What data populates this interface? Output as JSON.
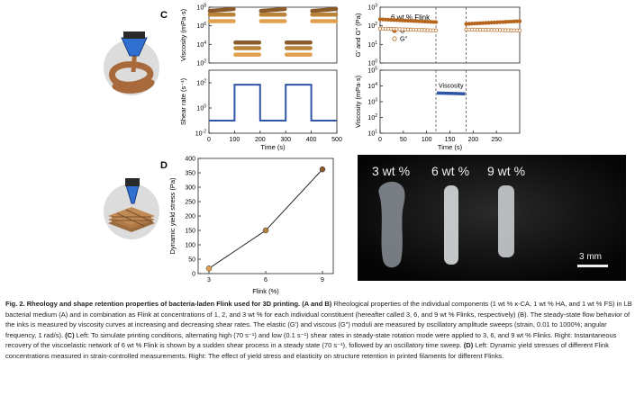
{
  "panel_c_label": "C",
  "panel_d_label": "D",
  "photo": {
    "labels": [
      "3 wt %",
      "6 wt %",
      "9 wt %"
    ],
    "scale_bar": "3 mm"
  },
  "caption": {
    "lead": "Fig. 2.",
    "title": "Rheology and shape retention properties of bacteria-laden Flink used for 3D printing.",
    "ab_bold": "(A and B)",
    "ab_text": "Rheological properties of the individual components (1 wt % κ-CA, 1 wt % HA, and 1 wt % FS) in LB bacterial medium (A) and in combination as Flink at concentrations of 1, 2, and 3 wt % for each individual constituent (hereafter called 3, 6, and 9 wt % Flinks, respectively) (B). The steady-state flow behavior of the inks is measured by viscosity curves at increasing and decreasing shear rates. The elastic (G′) and viscous (G″) moduli are measured by oscillatory amplitude sweeps (strain, 0.01 to 1000%; angular frequency, 1 rad/s).",
    "c_bold": "(C)",
    "c_text": "Left: To simulate printing conditions, alternating high (70 s⁻¹) and low (0.1 s⁻¹) shear rates in steady-state rotation mode were applied to 3, 6, and 9 wt % Flinks. Right: Instantaneous recovery of the viscoelastic network of 6 wt % Flink is shown by a sudden shear process in a steady state (70 s⁻¹), followed by an oscillatory time sweep.",
    "d_bold": "(D)",
    "d_text": "Left: Dynamic yield stresses of different Flink concentrations measured in strain-controlled measurements. Right: The effect of yield stress and elasticity on structure retention in printed filaments for different Flinks."
  },
  "chart_data": [
    {
      "id": "c-left-viscosity",
      "type": "line",
      "ylabel": "Viscosity (mPa·s)",
      "xlim": [
        0,
        500
      ],
      "yscale": "log",
      "ylim": [
        100,
        100000000
      ],
      "yticks_exp": [
        2,
        4,
        6,
        8
      ],
      "colors": [
        "#8a5a2b",
        "#b88338",
        "#e0a050"
      ],
      "segments": [
        {
          "x": [
            0,
            100
          ],
          "series": [
            {
              "values_log10": [
                7.6,
                7.8
              ]
            },
            {
              "values_log10": [
                7.2,
                7.2
              ]
            },
            {
              "values_log10": [
                6.5,
                6.5
              ]
            }
          ]
        },
        {
          "x": [
            100,
            200
          ],
          "series": [
            {
              "values_log10": [
                4.2,
                4.2
              ]
            },
            {
              "values_log10": [
                3.6,
                3.6
              ]
            },
            {
              "values_log10": [
                2.9,
                2.9
              ]
            }
          ]
        },
        {
          "x": [
            200,
            300
          ],
          "series": [
            {
              "values_log10": [
                7.6,
                7.8
              ]
            },
            {
              "values_log10": [
                7.2,
                7.2
              ]
            },
            {
              "values_log10": [
                6.5,
                6.5
              ]
            }
          ]
        },
        {
          "x": [
            300,
            400
          ],
          "series": [
            {
              "values_log10": [
                4.2,
                4.2
              ]
            },
            {
              "values_log10": [
                3.6,
                3.6
              ]
            },
            {
              "values_log10": [
                2.9,
                2.9
              ]
            }
          ]
        },
        {
          "x": [
            400,
            500
          ],
          "series": [
            {
              "values_log10": [
                7.6,
                7.8
              ]
            },
            {
              "values_log10": [
                7.2,
                7.2
              ]
            },
            {
              "values_log10": [
                6.5,
                6.5
              ]
            }
          ]
        }
      ]
    },
    {
      "id": "c-left-shear",
      "type": "line",
      "xlabel": "Time (s)",
      "ylabel": "Shear rate (s⁻¹)",
      "xlim": [
        0,
        500
      ],
      "xticks": [
        0,
        100,
        200,
        300,
        400,
        500
      ],
      "yscale": "log",
      "ylim": [
        0.01,
        1000
      ],
      "yticks_exp": [
        -2,
        0,
        2
      ],
      "color": "#2f56a6",
      "x": [
        0,
        100,
        100,
        200,
        200,
        300,
        300,
        400,
        400,
        500
      ],
      "values": [
        0.1,
        0.1,
        70,
        70,
        0.1,
        0.1,
        70,
        70,
        0.1,
        0.1
      ]
    },
    {
      "id": "c-right-moduli",
      "type": "scatter",
      "ylabel": "G′ and G″ (Pa)",
      "annotation": "6 wt % Flink",
      "xlim": [
        0,
        300
      ],
      "yscale": "log",
      "ylim": [
        1,
        1000
      ],
      "yticks_exp": [
        0,
        1,
        2,
        3
      ],
      "dividers_x": [
        120,
        185
      ],
      "series": [
        {
          "name": "G′",
          "marker": "filled",
          "color": "#b5651d",
          "segments": [
            {
              "x": [
                0,
                120
              ],
              "values_log10": [
                2.35,
                2.2
              ]
            },
            {
              "x": [
                185,
                300
              ],
              "values_log10": [
                2.1,
                2.25
              ]
            }
          ]
        },
        {
          "name": "G″",
          "marker": "open",
          "color": "#b5651d",
          "segments": [
            {
              "x": [
                0,
                120
              ],
              "values_log10": [
                1.85,
                1.75
              ]
            },
            {
              "x": [
                185,
                300
              ],
              "values_log10": [
                1.8,
                1.75
              ]
            }
          ]
        }
      ]
    },
    {
      "id": "c-right-viscosity",
      "type": "scatter",
      "xlabel": "Time (s)",
      "ylabel": "Viscosity (mPa·s)",
      "annotation": "Viscosity",
      "xlim": [
        0,
        300
      ],
      "xticks": [
        0,
        50,
        100,
        150,
        200,
        250
      ],
      "yscale": "log",
      "ylim": [
        10,
        100000
      ],
      "yticks_exp": [
        1,
        2,
        3,
        4,
        5
      ],
      "dividers_x": [
        120,
        185
      ],
      "color": "#2f56a6",
      "segment": {
        "x": [
          120,
          185
        ],
        "values_log10": [
          3.55,
          3.5
        ]
      }
    },
    {
      "id": "d-yield-stress",
      "type": "line",
      "xlabel": "Flink (%)",
      "ylabel": "Dynamic yield stress (Pa)",
      "categories": [
        3,
        6,
        9
      ],
      "values": [
        18,
        150,
        362
      ],
      "marker_colors": [
        "#e0a050",
        "#b88338",
        "#8a5a2b"
      ],
      "ylim": [
        0,
        400
      ],
      "yticks": [
        0,
        50,
        100,
        150,
        200,
        250,
        300,
        350,
        400
      ]
    }
  ]
}
